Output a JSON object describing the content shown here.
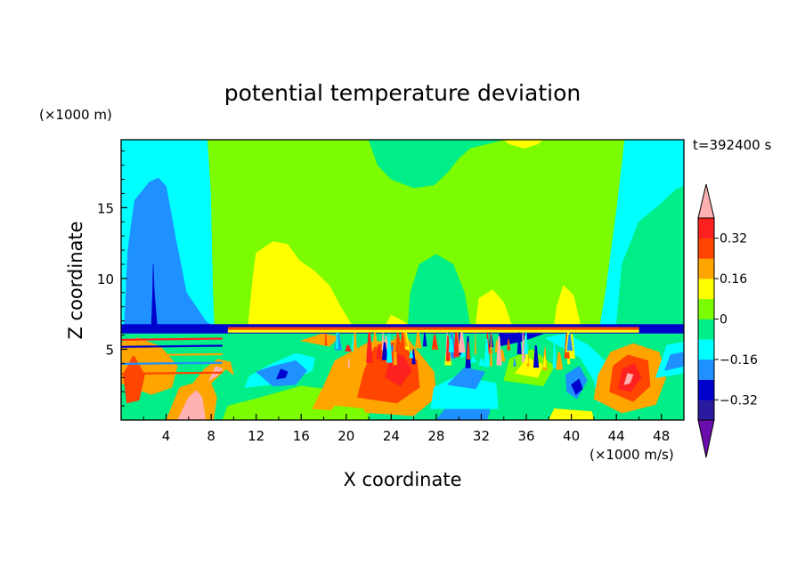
{
  "chart_data": {
    "type": "heatmap",
    "title": "potential temperature deviation",
    "xlabel": "X coordinate",
    "ylabel": "Z coordinate",
    "x_units": "(×1000 m/s)",
    "y_units": "(×1000 m)",
    "time_label": "t=392400 s",
    "xlim": [
      0,
      50
    ],
    "ylim": [
      0,
      19.8
    ],
    "x_ticks": [
      4,
      8,
      12,
      16,
      20,
      24,
      28,
      32,
      36,
      40,
      44,
      48
    ],
    "y_ticks": [
      5,
      10,
      15
    ],
    "colorbar": {
      "labels": [
        "0.32",
        "0.16",
        "0",
        "−0.16",
        "−0.32"
      ],
      "label_values": [
        0.32,
        0.16,
        0,
        -0.16,
        -0.32
      ],
      "levels": [
        -0.4,
        -0.32,
        -0.24,
        -0.16,
        -0.08,
        0,
        0.08,
        0.16,
        0.24,
        0.32,
        0.4
      ],
      "colors": [
        "#6a0dad",
        "#2a1aa0",
        "#0000cd",
        "#1e90ff",
        "#00ffff",
        "#00ee88",
        "#7cfc00",
        "#ffff00",
        "#ffa500",
        "#ff4500",
        "#ff2020",
        "#ffb0b0"
      ]
    },
    "grid": false,
    "legend": "colorbar right"
  }
}
